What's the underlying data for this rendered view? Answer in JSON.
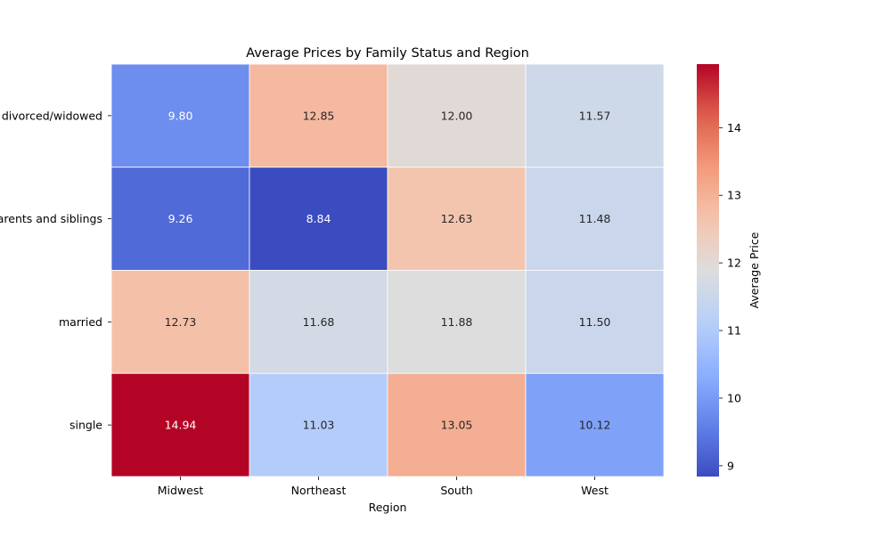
{
  "chart_data": {
    "type": "heatmap",
    "title": "Average Prices by Family Status and Region",
    "xlabel": "Region",
    "ylabel": "",
    "x_categories": [
      "Midwest",
      "Northeast",
      "South",
      "West"
    ],
    "y_categories": [
      "divorced/widowed",
      "parents and siblings",
      "married",
      "single"
    ],
    "values": [
      [
        9.8,
        12.85,
        12.0,
        11.57
      ],
      [
        9.26,
        8.84,
        12.63,
        11.48
      ],
      [
        12.73,
        11.68,
        11.88,
        11.5
      ],
      [
        14.94,
        11.03,
        13.05,
        10.12
      ]
    ],
    "value_labels": [
      [
        "9.80",
        "12.85",
        "12.00",
        "11.57"
      ],
      [
        "9.26",
        "8.84",
        "12.63",
        "11.48"
      ],
      [
        "12.73",
        "11.68",
        "11.88",
        "11.50"
      ],
      [
        "14.94",
        "11.03",
        "13.05",
        "10.12"
      ]
    ],
    "colormap": "coolwarm",
    "value_range": [
      8.84,
      14.94
    ],
    "colorbar": {
      "label": "Average Price",
      "ticks": [
        9,
        10,
        11,
        12,
        13,
        14
      ],
      "tick_labels": [
        "9",
        "10",
        "11",
        "12",
        "13",
        "14"
      ]
    },
    "cell_border_color": "#ffffff",
    "grid": false,
    "legend": "colorbar-right"
  }
}
